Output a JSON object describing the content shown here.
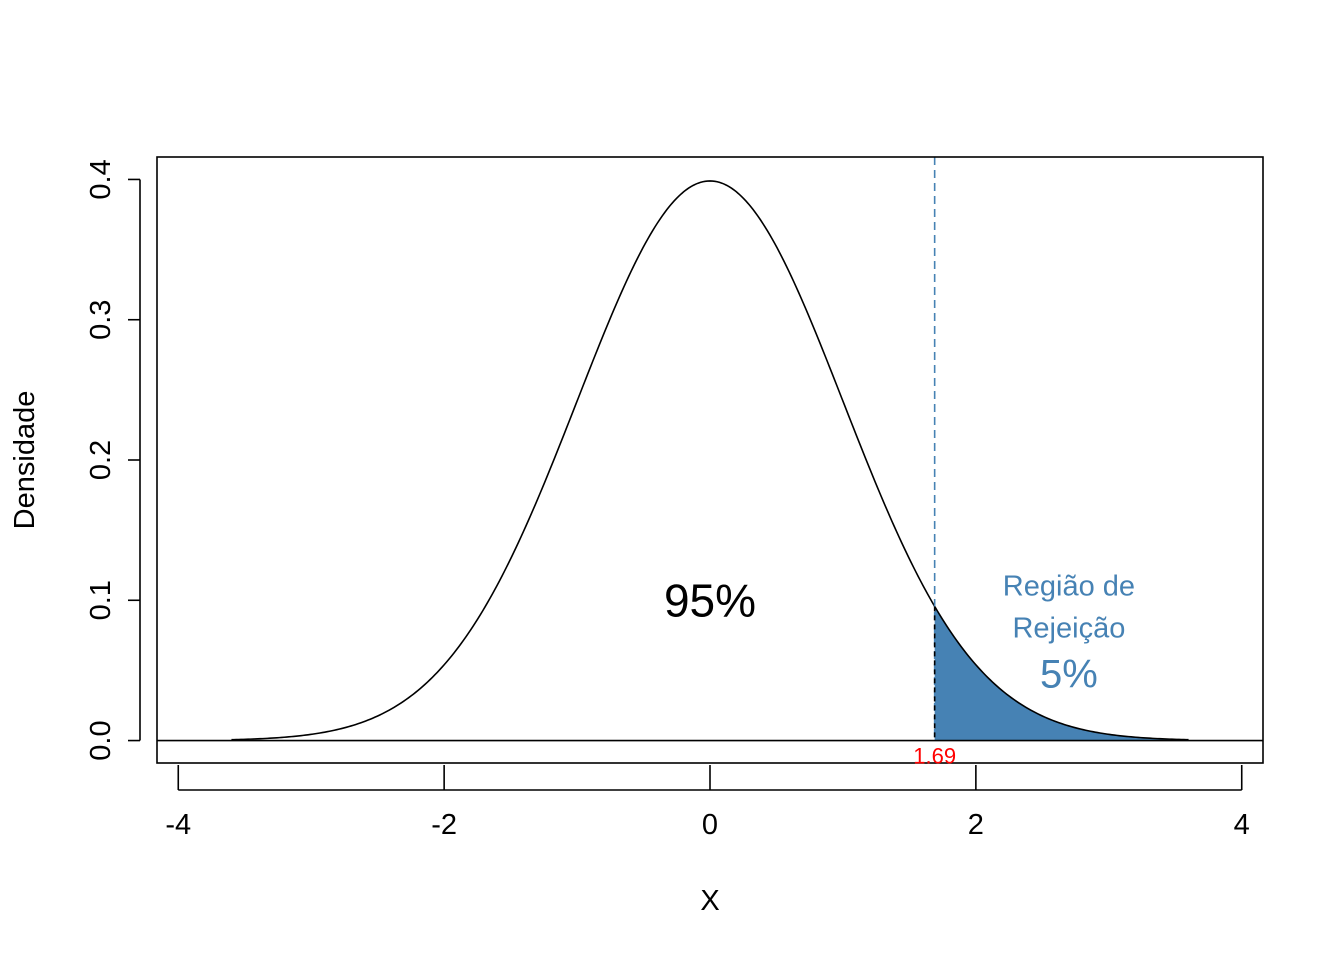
{
  "chart_data": {
    "type": "area",
    "title": "",
    "xlabel": "X",
    "ylabel": "Densidade",
    "xlim": [
      -4.16,
      4.16
    ],
    "ylim": [
      -0.016,
      0.416
    ],
    "x_ticks": [
      -4,
      -2,
      0,
      2,
      4
    ],
    "x_tick_labels": [
      "-4",
      "-2",
      "0",
      "2",
      "4"
    ],
    "y_ticks": [
      0.0,
      0.1,
      0.2,
      0.3,
      0.4
    ],
    "y_tick_labels": [
      "0.0",
      "0.1",
      "0.2",
      "0.3",
      "0.4"
    ],
    "grid": false,
    "curve": {
      "distribution": "standard normal density",
      "x_range": [
        -3.6,
        3.6
      ],
      "x": [
        -3.6,
        -3.0,
        -2.5,
        -2.0,
        -1.5,
        -1.0,
        -0.5,
        0.0,
        0.5,
        1.0,
        1.5,
        1.69,
        2.0,
        2.5,
        3.0,
        3.6
      ],
      "y": [
        0.0006,
        0.0044,
        0.0175,
        0.054,
        0.1295,
        0.242,
        0.3521,
        0.3989,
        0.3521,
        0.242,
        0.1295,
        0.0957,
        0.054,
        0.0175,
        0.0044,
        0.0006
      ]
    },
    "critical_value": 1.69,
    "critical_label": "1.69",
    "shaded_region": {
      "from": 1.69,
      "to": 3.6,
      "color": "#4682B4"
    },
    "colors": {
      "curve": "#000000",
      "rejection": "#4682B4",
      "critical_label": "#FF0000"
    },
    "annotations": {
      "acceptance": {
        "text": "95%",
        "x": 0,
        "y": 0.1
      },
      "rejection_title_line1": {
        "text": "Região de",
        "x": 2.7,
        "y": 0.11
      },
      "rejection_title_line2": {
        "text": "Rejeição",
        "x": 2.7,
        "y": 0.08
      },
      "rejection_percent": {
        "text": "5%",
        "x": 2.7,
        "y": 0.047
      }
    }
  }
}
